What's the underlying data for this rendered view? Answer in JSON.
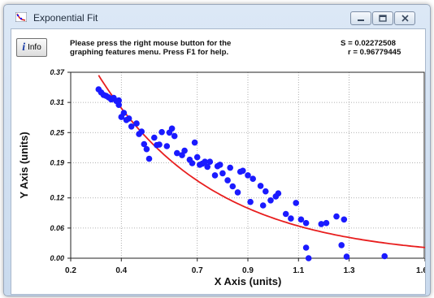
{
  "window": {
    "title": "Exponential Fit"
  },
  "toolbar": {
    "info_label": "Info",
    "info_glyph": "i"
  },
  "message": {
    "line1": "Please press the right mouse button for the",
    "line2": "graphing features menu.  Press F1 for help."
  },
  "stats": {
    "s": "S = 0.02272508",
    "r": "r = 0.96779445"
  },
  "colors": {
    "points": "#1a1aff",
    "fit_curve": "#e81e1e"
  },
  "chart_data": {
    "type": "scatter",
    "xlabel": "X Axis (units)",
    "ylabel": "Y Axis (units)",
    "xlim": [
      0.2,
      1.6
    ],
    "ylim": [
      0.0,
      0.37
    ],
    "x_ticks": [
      "0.2",
      "0.4",
      "0.7",
      "0.9",
      "1.1",
      "1.3",
      "1.6"
    ],
    "x_tick_values": [
      0.2,
      0.4,
      0.7,
      0.9,
      1.1,
      1.3,
      1.6
    ],
    "y_ticks": [
      "0.00",
      "0.06",
      "0.12",
      "0.19",
      "0.25",
      "0.31",
      "0.37"
    ],
    "y_tick_values": [
      0.0,
      0.06,
      0.12,
      0.19,
      0.25,
      0.31,
      0.37
    ],
    "grid": true,
    "series": [
      {
        "type": "scatter",
        "x": [
          0.31,
          0.32,
          0.33,
          0.34,
          0.35,
          0.36,
          0.37,
          0.38,
          0.39,
          0.39,
          0.4,
          0.41,
          0.42,
          0.43,
          0.44,
          0.46,
          0.47,
          0.48,
          0.49,
          0.5,
          0.51,
          0.53,
          0.54,
          0.55,
          0.56,
          0.58,
          0.59,
          0.6,
          0.61,
          0.62,
          0.64,
          0.65,
          0.67,
          0.68,
          0.69,
          0.7,
          0.71,
          0.72,
          0.73,
          0.74,
          0.75,
          0.77,
          0.78,
          0.79,
          0.8,
          0.82,
          0.83,
          0.84,
          0.86,
          0.87,
          0.88,
          0.9,
          0.91,
          0.92,
          0.95,
          0.96,
          0.97,
          0.99,
          1.01,
          1.02,
          1.05,
          1.07,
          1.09,
          1.11,
          1.13,
          1.13,
          1.14,
          1.19,
          1.21,
          1.25,
          1.27,
          1.28,
          1.29,
          1.44
        ],
        "y": [
          0.336,
          0.33,
          0.325,
          0.323,
          0.32,
          0.316,
          0.319,
          0.313,
          0.314,
          0.305,
          0.281,
          0.289,
          0.275,
          0.278,
          0.262,
          0.268,
          0.247,
          0.252,
          0.227,
          0.217,
          0.198,
          0.24,
          0.225,
          0.226,
          0.251,
          0.223,
          0.25,
          0.258,
          0.243,
          0.209,
          0.205,
          0.214,
          0.196,
          0.189,
          0.23,
          0.201,
          0.186,
          0.188,
          0.192,
          0.182,
          0.192,
          0.165,
          0.183,
          0.186,
          0.169,
          0.155,
          0.18,
          0.143,
          0.131,
          0.172,
          0.174,
          0.165,
          0.112,
          0.158,
          0.144,
          0.105,
          0.133,
          0.115,
          0.123,
          0.129,
          0.088,
          0.079,
          0.11,
          0.077,
          0.07,
          0.021,
          0.0,
          0.068,
          0.07,
          0.083,
          0.026,
          0.077,
          0.003,
          0.004
        ]
      },
      {
        "type": "line",
        "fit_a": 0.72,
        "fit_b": -2.2,
        "x_range": [
          0.31,
          1.6
        ]
      }
    ]
  }
}
